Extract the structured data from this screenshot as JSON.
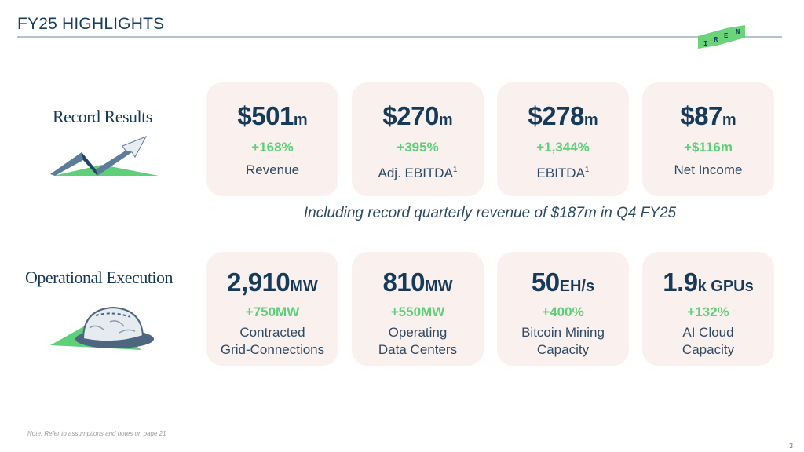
{
  "header": {
    "title": "FY25 HIGHLIGHTS",
    "logo_text": "IREN"
  },
  "sections": [
    {
      "label": "Record Results",
      "icon": "trending-up-arrow-icon",
      "cards": [
        {
          "value": "$501",
          "unit": "m",
          "change": "+168%",
          "label": "Revenue",
          "sup": ""
        },
        {
          "value": "$270",
          "unit": "m",
          "change": "+395%",
          "label": "Adj. EBITDA",
          "sup": "1"
        },
        {
          "value": "$278",
          "unit": "m",
          "change": "+1,344%",
          "label": "EBITDA",
          "sup": "1"
        },
        {
          "value": "$87",
          "unit": "m",
          "change": "+$116m",
          "label": "Net Income",
          "sup": ""
        }
      ],
      "subtitle": "Including record quarterly revenue of $187m in Q4 FY25"
    },
    {
      "label": "Operational Execution",
      "icon": "hard-hat-icon",
      "cards": [
        {
          "value": "2,910",
          "unit": "MW",
          "change": "+750MW",
          "label1": "Contracted",
          "label2": "Grid-Connections"
        },
        {
          "value": "810",
          "unit": "MW",
          "change": "+550MW",
          "label1": "Operating",
          "label2": "Data Centers"
        },
        {
          "value": "50",
          "unit": "EH/s",
          "change": "+400%",
          "label1": "Bitcoin Mining",
          "label2": "Capacity"
        },
        {
          "value": "1.9",
          "unit": "k GPUs",
          "change": "+132%",
          "label1": "AI Cloud",
          "label2": "Capacity"
        }
      ]
    }
  ],
  "footer": {
    "note": "Note: Refer to assumptions and notes on page 21",
    "page_number": "3"
  },
  "colors": {
    "navy": "#163a5a",
    "green": "#5fd07a",
    "card_bg": "#faf1ef",
    "rule": "#b7c1cb"
  }
}
